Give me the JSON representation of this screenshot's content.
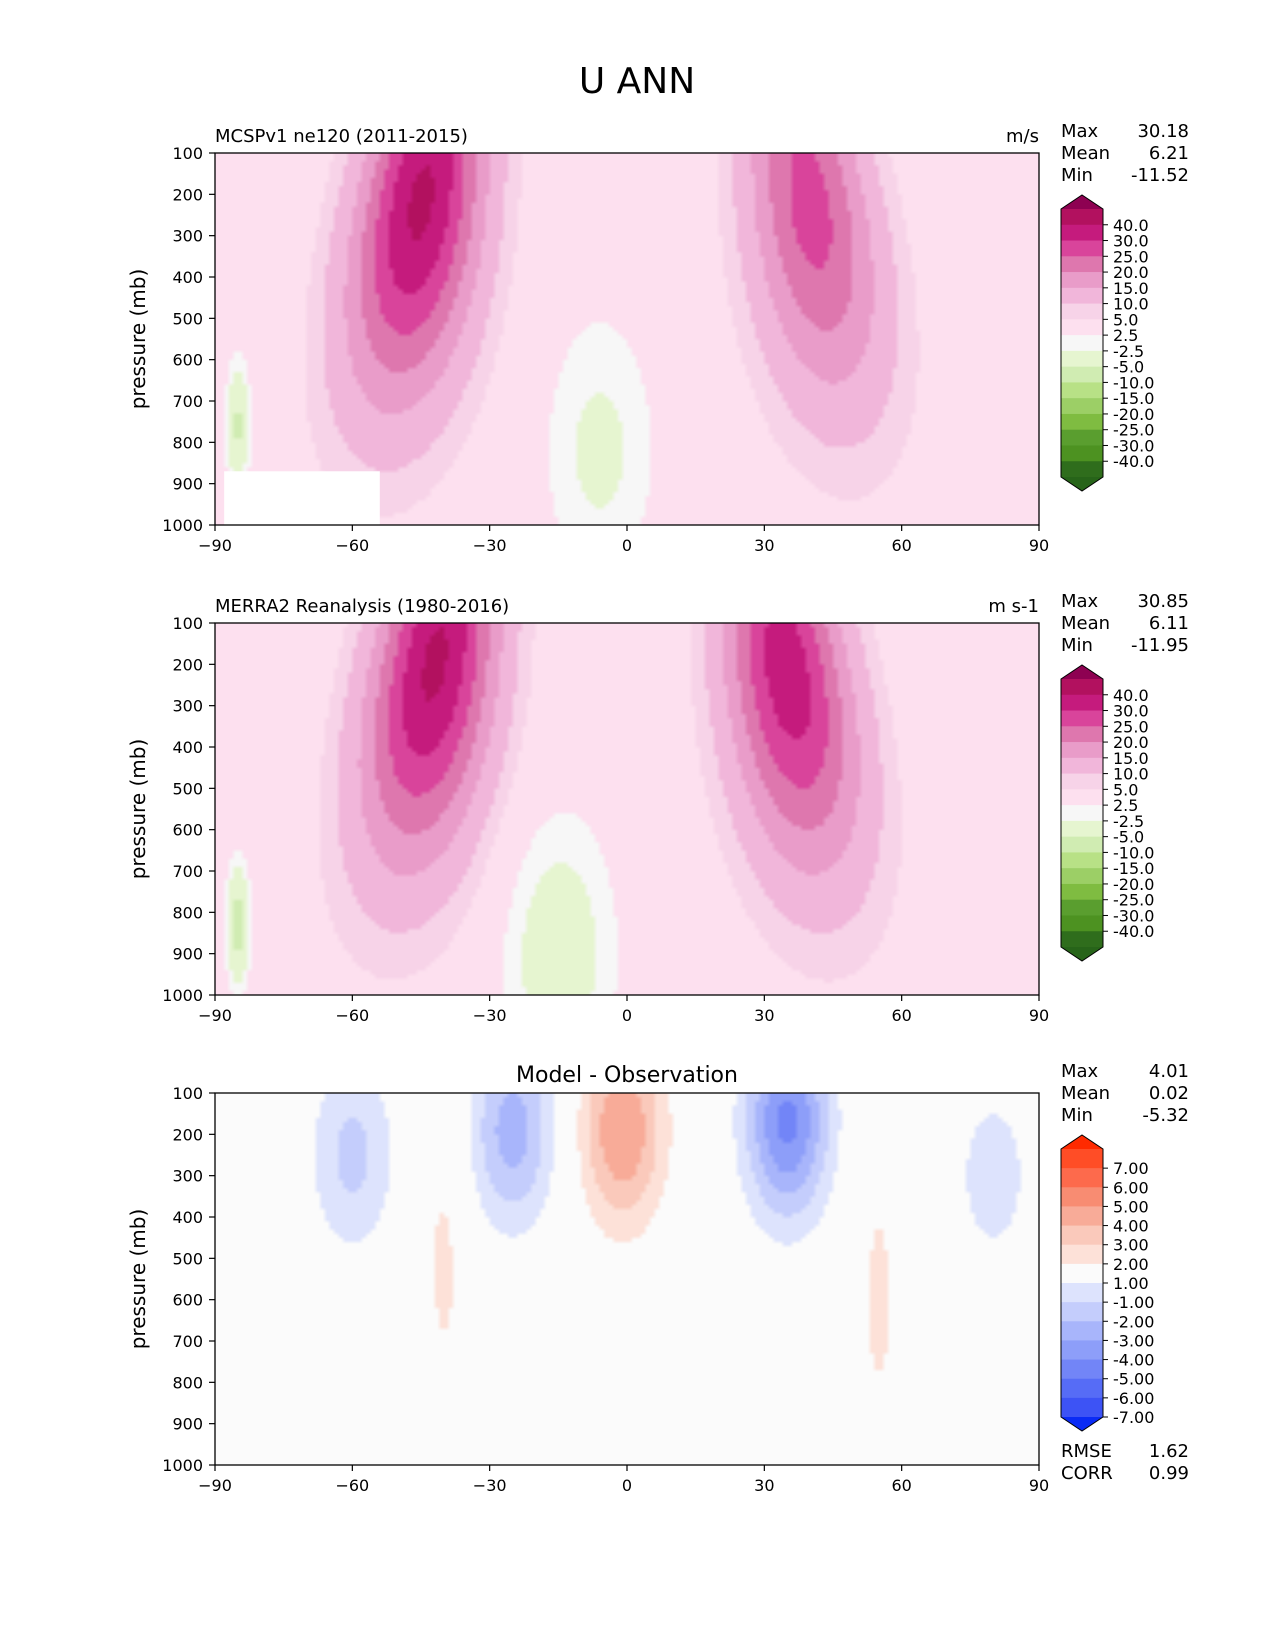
{
  "figure": {
    "title": "U ANN"
  },
  "chart_data": [
    {
      "type": "heatmap",
      "id": "test",
      "title_left": "MCSPv1 ne120 (2011-2015)",
      "units": "m/s",
      "ylabel": "pressure (mb)",
      "xlim": [
        -90,
        90
      ],
      "ylim": [
        1000,
        100
      ],
      "xticks": [
        "−90",
        "−60",
        "−30",
        "0",
        "30",
        "60",
        "90"
      ],
      "yticks": [
        "100",
        "200",
        "300",
        "400",
        "500",
        "600",
        "700",
        "800",
        "900",
        "1000"
      ],
      "stats": [
        {
          "label": "Max",
          "value": "30.18"
        },
        {
          "label": "Mean",
          "value": "6.21"
        },
        {
          "label": "Min",
          "value": "-11.52"
        }
      ],
      "colorbar": {
        "labels": [
          "40.0",
          "30.0",
          "25.0",
          "20.0",
          "15.0",
          "10.0",
          "5.0",
          "2.5",
          "-2.5",
          "-5.0",
          "-10.0",
          "-15.0",
          "-20.0",
          "-25.0",
          "-30.0",
          "-40.0"
        ],
        "colors": [
          "#8e0152",
          "#b2115f",
          "#c51b7d",
          "#d9449b",
          "#de77ae",
          "#e99cc9",
          "#f1b6da",
          "#f7d3e8",
          "#fde0ef",
          "#f7f7f7",
          "#e6f5d0",
          "#d0ecb2",
          "#b8e186",
          "#9ccf66",
          "#7fbc41",
          "#5a9e2f",
          "#4d9221",
          "#2f6d1c",
          "#276419"
        ]
      },
      "jets": [
        {
          "lat": -45,
          "p": 220,
          "u": 31
        },
        {
          "lat": 40,
          "p": 230,
          "u": 22
        },
        {
          "lat": -6,
          "p": 820,
          "u": -6
        },
        {
          "lat": -85,
          "p": 760,
          "u": -11
        }
      ],
      "masked_region": {
        "lat": [
          -88,
          -54
        ],
        "p": [
          870,
          1000
        ]
      }
    },
    {
      "type": "heatmap",
      "id": "ref",
      "title_left": "MERRA2 Reanalysis (1980-2016)",
      "units": "m s-1",
      "ylabel": "pressure (mb)",
      "xlim": [
        -90,
        90
      ],
      "ylim": [
        1000,
        100
      ],
      "xticks": [
        "−90",
        "−60",
        "−30",
        "0",
        "30",
        "60",
        "90"
      ],
      "yticks": [
        "100",
        "200",
        "300",
        "400",
        "500",
        "600",
        "700",
        "800",
        "900",
        "1000"
      ],
      "stats": [
        {
          "label": "Max",
          "value": "30.85"
        },
        {
          "label": "Mean",
          "value": "6.11"
        },
        {
          "label": "Min",
          "value": "-11.95"
        }
      ],
      "colorbar": {
        "labels": [
          "40.0",
          "30.0",
          "25.0",
          "20.0",
          "15.0",
          "10.0",
          "5.0",
          "2.5",
          "-2.5",
          "-5.0",
          "-10.0",
          "-15.0",
          "-20.0",
          "-25.0",
          "-30.0",
          "-40.0"
        ],
        "colors": [
          "#8e0152",
          "#b2115f",
          "#c51b7d",
          "#d9449b",
          "#de77ae",
          "#e99cc9",
          "#f1b6da",
          "#f7d3e8",
          "#fde0ef",
          "#f7f7f7",
          "#e6f5d0",
          "#d0ecb2",
          "#b8e186",
          "#9ccf66",
          "#7fbc41",
          "#5a9e2f",
          "#4d9221",
          "#2f6d1c",
          "#276419"
        ]
      },
      "jets": [
        {
          "lat": -42,
          "p": 200,
          "u": 31
        },
        {
          "lat": 35,
          "p": 220,
          "u": 28
        },
        {
          "lat": -15,
          "p": 900,
          "u": -8
        },
        {
          "lat": -85,
          "p": 830,
          "u": -12
        }
      ]
    },
    {
      "type": "heatmap",
      "id": "diff",
      "title_center": "Model - Observation",
      "ylabel": "pressure (mb)",
      "xlim": [
        -90,
        90
      ],
      "ylim": [
        1000,
        100
      ],
      "xticks": [
        "−90",
        "−60",
        "−30",
        "0",
        "30",
        "60",
        "90"
      ],
      "yticks": [
        "100",
        "200",
        "300",
        "400",
        "500",
        "600",
        "700",
        "800",
        "900",
        "1000"
      ],
      "stats": [
        {
          "label": "Max",
          "value": "4.01"
        },
        {
          "label": "Mean",
          "value": "0.02"
        },
        {
          "label": "Min",
          "value": "-5.32"
        }
      ],
      "extra_stats": [
        {
          "label": "RMSE",
          "value": "1.62"
        },
        {
          "label": "CORR",
          "value": "0.99"
        }
      ],
      "colorbar": {
        "labels": [
          "7.00",
          "6.00",
          "5.00",
          "4.00",
          "3.00",
          "2.00",
          "1.00",
          "-1.00",
          "-2.00",
          "-3.00",
          "-4.00",
          "-5.00",
          "-6.00",
          "-7.00"
        ],
        "colors": [
          "#ff2a00",
          "#ff4d26",
          "#fd6a4c",
          "#f88c72",
          "#f8ab98",
          "#fac9bb",
          "#fde1d8",
          "#fbfbfb",
          "#dde3fd",
          "#c4cdfc",
          "#a8b5fb",
          "#8d9ef9",
          "#7285f7",
          "#566cf6",
          "#3d53f5",
          "#0a2bf5"
        ]
      },
      "jets": [
        {
          "lat": -60,
          "p": 250,
          "u": -2.3
        },
        {
          "lat": -25,
          "p": 190,
          "u": -3.5
        },
        {
          "lat": 35,
          "p": 170,
          "u": -5.3
        },
        {
          "lat": 80,
          "p": 300,
          "u": -1.5
        },
        {
          "lat": -1,
          "p": 190,
          "u": 4.0
        },
        {
          "lat": -40,
          "p": 500,
          "u": 1.2
        },
        {
          "lat": 55,
          "p": 600,
          "u": 1.2
        }
      ]
    }
  ]
}
